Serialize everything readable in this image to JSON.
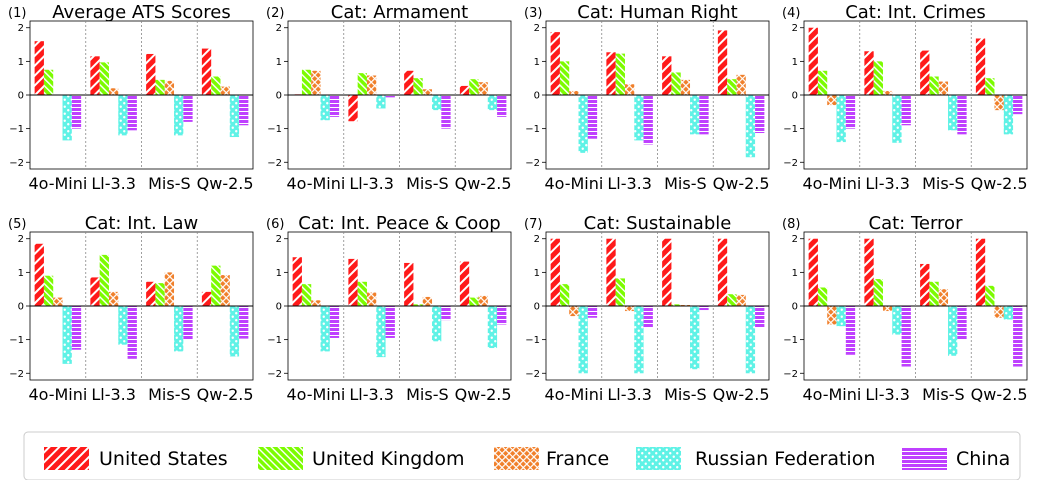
{
  "colors": {
    "United States": "#ff1a1a",
    "United Kingdom": "#7cfc00",
    "France": "#f07f2a",
    "Russian Federation": "#5ff2e6",
    "China": "#bf40ff"
  },
  "legend": [
    "United States",
    "United Kingdom",
    "France",
    "Russian Federation",
    "China"
  ],
  "chart_data": [
    {
      "type": "bar",
      "num": "(1)",
      "title": "Average ATS Scores",
      "categories": [
        "4o-Mini",
        "Ll-3.3",
        "Mis-S",
        "Qw-2.5"
      ],
      "ylim": [
        -2.2,
        2.2
      ],
      "yticks": [
        -2,
        -1,
        0,
        1,
        2
      ],
      "series": [
        {
          "name": "United States",
          "values": [
            1.6,
            1.15,
            1.22,
            1.38
          ]
        },
        {
          "name": "United Kingdom",
          "values": [
            0.75,
            0.97,
            0.45,
            0.55
          ]
        },
        {
          "name": "France",
          "values": [
            0.0,
            0.2,
            0.42,
            0.25
          ]
        },
        {
          "name": "Russian Federation",
          "values": [
            -1.35,
            -1.2,
            -1.2,
            -1.25
          ]
        },
        {
          "name": "China",
          "values": [
            -1.0,
            -1.05,
            -0.8,
            -0.9
          ]
        }
      ]
    },
    {
      "type": "bar",
      "num": "(2)",
      "title": "Cat: Armament",
      "categories": [
        "4o-Mini",
        "Ll-3.3",
        "Mis-S",
        "Qw-2.5"
      ],
      "ylim": [
        -2.2,
        2.2
      ],
      "yticks": [
        -2,
        -1,
        0,
        1,
        2
      ],
      "series": [
        {
          "name": "United States",
          "values": [
            0.02,
            -0.78,
            0.72,
            0.27
          ]
        },
        {
          "name": "United Kingdom",
          "values": [
            0.75,
            0.65,
            0.5,
            0.47
          ]
        },
        {
          "name": "France",
          "values": [
            0.72,
            0.58,
            0.17,
            0.38
          ]
        },
        {
          "name": "Russian Federation",
          "values": [
            -0.75,
            -0.4,
            -0.45,
            -0.45
          ]
        },
        {
          "name": "China",
          "values": [
            -0.65,
            -0.07,
            -1.0,
            -0.65
          ]
        }
      ]
    },
    {
      "type": "bar",
      "num": "(3)",
      "title": "Cat: Human Right",
      "categories": [
        "4o-Mini",
        "Ll-3.3",
        "Mis-S",
        "Qw-2.5"
      ],
      "ylim": [
        -2.2,
        2.2
      ],
      "yticks": [
        -2,
        -1,
        0,
        1,
        2
      ],
      "series": [
        {
          "name": "United States",
          "values": [
            1.87,
            1.27,
            1.15,
            1.92
          ]
        },
        {
          "name": "United Kingdom",
          "values": [
            1.0,
            1.23,
            0.67,
            0.47
          ]
        },
        {
          "name": "France",
          "values": [
            0.12,
            0.32,
            0.45,
            0.6
          ]
        },
        {
          "name": "Russian Federation",
          "values": [
            -1.72,
            -1.35,
            -1.17,
            -1.85
          ]
        },
        {
          "name": "China",
          "values": [
            -1.3,
            -1.47,
            -1.17,
            -1.13
          ]
        }
      ]
    },
    {
      "type": "bar",
      "num": "(4)",
      "title": "Cat: Int. Crimes",
      "categories": [
        "4o-Mini",
        "Ll-3.3",
        "Mis-S",
        "Qw-2.5"
      ],
      "ylim": [
        -2.2,
        2.2
      ],
      "yticks": [
        -2,
        -1,
        0,
        1,
        2
      ],
      "series": [
        {
          "name": "United States",
          "values": [
            2.0,
            1.3,
            1.32,
            1.68
          ]
        },
        {
          "name": "United Kingdom",
          "values": [
            0.72,
            1.0,
            0.55,
            0.5
          ]
        },
        {
          "name": "France",
          "values": [
            -0.3,
            0.12,
            0.4,
            -0.45
          ]
        },
        {
          "name": "Russian Federation",
          "values": [
            -1.4,
            -1.42,
            -1.05,
            -1.17
          ]
        },
        {
          "name": "China",
          "values": [
            -1.0,
            -0.9,
            -1.17,
            -0.57
          ]
        }
      ]
    },
    {
      "type": "bar",
      "num": "(5)",
      "title": "Cat: Int. Law",
      "categories": [
        "4o-Mini",
        "Ll-3.3",
        "Mis-S",
        "Qw-2.5"
      ],
      "ylim": [
        -2.2,
        2.2
      ],
      "yticks": [
        -2,
        -1,
        0,
        1,
        2
      ],
      "series": [
        {
          "name": "United States",
          "values": [
            1.85,
            0.85,
            0.72,
            0.42
          ]
        },
        {
          "name": "United Kingdom",
          "values": [
            0.9,
            1.52,
            0.68,
            1.2
          ]
        },
        {
          "name": "France",
          "values": [
            0.25,
            0.42,
            1.0,
            0.92
          ]
        },
        {
          "name": "Russian Federation",
          "values": [
            -1.72,
            -1.15,
            -1.35,
            -1.5
          ]
        },
        {
          "name": "China",
          "values": [
            -1.3,
            -1.57,
            -1.0,
            -0.97
          ]
        }
      ]
    },
    {
      "type": "bar",
      "num": "(6)",
      "title": "Cat: Int. Peace & Coop",
      "categories": [
        "4o-Mini",
        "Ll-3.3",
        "Mis-S",
        "Qw-2.5"
      ],
      "ylim": [
        -2.2,
        2.2
      ],
      "yticks": [
        -2,
        -1,
        0,
        1,
        2
      ],
      "series": [
        {
          "name": "United States",
          "values": [
            1.45,
            1.4,
            1.28,
            1.32
          ]
        },
        {
          "name": "United Kingdom",
          "values": [
            0.65,
            0.72,
            0.05,
            0.25
          ]
        },
        {
          "name": "France",
          "values": [
            0.17,
            0.4,
            0.27,
            0.3
          ]
        },
        {
          "name": "Russian Federation",
          "values": [
            -1.35,
            -1.52,
            -1.05,
            -1.25
          ]
        },
        {
          "name": "China",
          "values": [
            -0.95,
            -0.95,
            -0.42,
            -0.55
          ]
        }
      ]
    },
    {
      "type": "bar",
      "num": "(7)",
      "title": "Cat: Sustainable",
      "categories": [
        "4o-Mini",
        "Ll-3.3",
        "Mis-S",
        "Qw-2.5"
      ],
      "ylim": [
        -2.2,
        2.2
      ],
      "yticks": [
        -2,
        -1,
        0,
        1,
        2
      ],
      "series": [
        {
          "name": "United States",
          "values": [
            2.0,
            2.0,
            2.0,
            2.0
          ]
        },
        {
          "name": "United Kingdom",
          "values": [
            0.65,
            0.82,
            0.05,
            0.35
          ]
        },
        {
          "name": "France",
          "values": [
            -0.3,
            -0.15,
            0.03,
            0.33
          ]
        },
        {
          "name": "Russian Federation",
          "values": [
            -2.0,
            -2.0,
            -1.88,
            -2.0
          ]
        },
        {
          "name": "China",
          "values": [
            -0.35,
            -0.65,
            -0.12,
            -0.65
          ]
        }
      ]
    },
    {
      "type": "bar",
      "num": "(8)",
      "title": "Cat: Terror",
      "categories": [
        "4o-Mini",
        "Ll-3.3",
        "Mis-S",
        "Qw-2.5"
      ],
      "ylim": [
        -2.2,
        2.2
      ],
      "yticks": [
        -2,
        -1,
        0,
        1,
        2
      ],
      "series": [
        {
          "name": "United States",
          "values": [
            2.0,
            2.0,
            1.25,
            2.0
          ]
        },
        {
          "name": "United Kingdom",
          "values": [
            0.55,
            0.8,
            0.72,
            0.6
          ]
        },
        {
          "name": "France",
          "values": [
            -0.55,
            -0.15,
            0.5,
            -0.35
          ]
        },
        {
          "name": "Russian Federation",
          "values": [
            -0.6,
            -0.85,
            -1.48,
            -0.4
          ]
        },
        {
          "name": "China",
          "values": [
            -1.45,
            -1.8,
            -1.0,
            -1.8
          ]
        }
      ]
    }
  ]
}
